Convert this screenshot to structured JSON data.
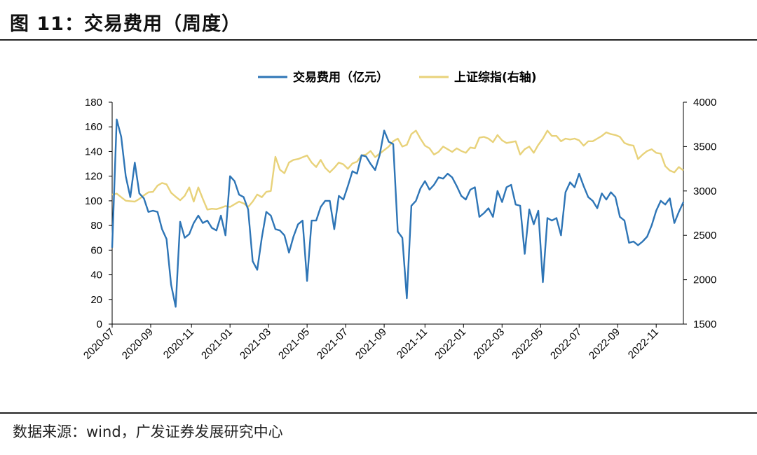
{
  "figure": {
    "title": "图 11：交易费用（周度）",
    "source": "数据来源：wind，广发证券发展研究中心"
  },
  "colors": {
    "series1": "#2e75b6",
    "series2": "#e8d27a",
    "axis": "#000000",
    "rule": "#222222"
  },
  "chart_data": {
    "type": "line",
    "title": "",
    "x_tick_labels": [
      "2020-07",
      "2020-09",
      "2020-11",
      "2021-01",
      "2021-03",
      "2021-05",
      "2021-07",
      "2021-09",
      "2021-11",
      "2022-01",
      "2022-03",
      "2022-05",
      "2022-07",
      "2022-09",
      "2022-11"
    ],
    "x_tick_positions_weeks": [
      0,
      8.5,
      17.5,
      26,
      34.5,
      43,
      51.5,
      60,
      69,
      77.5,
      86,
      94.5,
      103,
      111.5,
      120
    ],
    "y_left": {
      "min": 0,
      "max": 180,
      "ticks": [
        0,
        20,
        40,
        60,
        80,
        100,
        120,
        140,
        160,
        180
      ]
    },
    "y_right": {
      "min": 1500,
      "max": 4000,
      "ticks": [
        1500,
        2000,
        2500,
        3000,
        3500,
        4000
      ]
    },
    "grid": false,
    "legend_position": "top-center",
    "series": [
      {
        "name": "交易费用（亿元）",
        "axis": "left",
        "values": [
          62,
          166,
          152,
          120,
          103,
          131,
          106,
          102,
          91,
          92,
          91,
          77,
          69,
          32,
          14,
          83,
          70,
          73,
          82,
          88,
          82,
          84,
          78,
          76,
          88,
          72,
          120,
          116,
          105,
          103,
          93,
          51,
          44,
          70,
          91,
          88,
          77,
          76,
          72,
          58,
          71,
          81,
          84,
          35,
          84,
          84,
          95,
          100,
          100,
          77,
          104,
          101,
          112,
          124,
          122,
          137,
          136,
          130,
          125,
          137,
          157,
          148,
          146,
          75,
          70,
          21,
          96,
          100,
          110,
          116,
          109,
          113,
          119,
          118,
          122,
          119,
          112,
          104,
          101,
          109,
          111,
          87,
          90,
          94,
          87,
          108,
          99,
          111,
          113,
          97,
          96,
          57,
          93,
          81,
          92,
          34,
          86,
          84,
          86,
          72,
          107,
          115,
          111,
          122,
          112,
          103,
          100,
          94,
          106,
          101,
          107,
          103,
          87,
          84,
          66,
          67,
          64,
          67,
          71,
          80,
          92,
          100,
          97,
          102,
          82,
          91,
          99
        ]
      },
      {
        "name": "上证综指(右轴)",
        "axis": "right",
        "values": [
          2960,
          2970,
          2930,
          2890,
          2885,
          2880,
          2910,
          2950,
          2985,
          2990,
          3060,
          3090,
          3075,
          2980,
          2935,
          2895,
          2945,
          3040,
          2880,
          3040,
          2910,
          2790,
          2800,
          2795,
          2810,
          2830,
          2820,
          2850,
          2880,
          2860,
          2820,
          2880,
          2960,
          2930,
          2990,
          3000,
          3385,
          3240,
          3200,
          3320,
          3350,
          3360,
          3380,
          3400,
          3320,
          3270,
          3350,
          3260,
          3210,
          3260,
          3320,
          3300,
          3250,
          3310,
          3330,
          3400,
          3410,
          3450,
          3380,
          3420,
          3460,
          3500,
          3560,
          3590,
          3500,
          3520,
          3640,
          3680,
          3590,
          3510,
          3480,
          3410,
          3440,
          3500,
          3470,
          3440,
          3480,
          3450,
          3430,
          3490,
          3480,
          3600,
          3610,
          3590,
          3550,
          3630,
          3570,
          3540,
          3550,
          3560,
          3410,
          3470,
          3500,
          3430,
          3520,
          3590,
          3680,
          3620,
          3620,
          3560,
          3590,
          3580,
          3590,
          3570,
          3510,
          3560,
          3560,
          3590,
          3620,
          3660,
          3640,
          3630,
          3610,
          3540,
          3520,
          3510,
          3360,
          3410,
          3450,
          3470,
          3430,
          3420,
          3280,
          3230,
          3210,
          3270,
          3230
        ]
      }
    ]
  }
}
